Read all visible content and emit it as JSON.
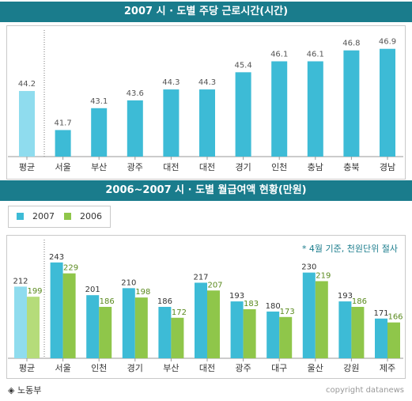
{
  "chart_data": [
    {
      "type": "bar",
      "title": "2007 시 · 도별 주당 근로시간(시간)",
      "categories": [
        "평균",
        "서울",
        "부산",
        "광주",
        "대전",
        "대전",
        "경기",
        "인천",
        "충남",
        "충북",
        "경남"
      ],
      "series": [
        {
          "values": [
            44.2,
            41.7,
            43.1,
            43.6,
            44.3,
            44.3,
            45.4,
            46.1,
            46.1,
            46.8,
            46.9
          ]
        }
      ],
      "value_labels": [
        "44.2",
        "41.7",
        "43.1",
        "43.6",
        "44.3",
        "44.3",
        "45.4",
        "46.1",
        "46.1",
        "46.8",
        "46.9"
      ],
      "colors": {
        "average": "#8fdcee",
        "bar": "#3dbbd6"
      },
      "grid": false
    },
    {
      "type": "bar",
      "title": "2006~2007 시 · 도별 월급여액 현황(만원)",
      "categories": [
        "평균",
        "서울",
        "인천",
        "경기",
        "부산",
        "대전",
        "광주",
        "대구",
        "울산",
        "강원",
        "제주"
      ],
      "series": [
        {
          "name": "2007",
          "values": [
            212,
            243,
            201,
            210,
            186,
            217,
            193,
            180,
            230,
            193,
            171
          ]
        },
        {
          "name": "2006",
          "values": [
            199,
            229,
            186,
            198,
            172,
            207,
            183,
            173,
            219,
            186,
            166
          ]
        }
      ],
      "colors": {
        "2007_average": "#8fdcee",
        "2007": "#3dbbd6",
        "2006_average": "#b5dc7a",
        "2006": "#8fc64a"
      },
      "legend": "top-left",
      "annotation": "* 4월 기준, 천원단위 절사",
      "grid": false
    }
  ],
  "legend": [
    {
      "label": "2007",
      "color": "#3dbbd6"
    },
    {
      "label": "2006",
      "color": "#8fc64a"
    }
  ],
  "source": "◈ 노동부",
  "copyright": "copyright datanews"
}
